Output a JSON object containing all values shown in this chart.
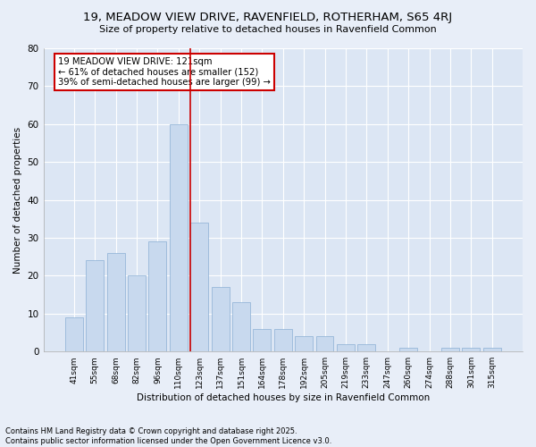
{
  "title": "19, MEADOW VIEW DRIVE, RAVENFIELD, ROTHERHAM, S65 4RJ",
  "subtitle": "Size of property relative to detached houses in Ravenfield Common",
  "xlabel": "Distribution of detached houses by size in Ravenfield Common",
  "ylabel": "Number of detached properties",
  "footnote": "Contains HM Land Registry data © Crown copyright and database right 2025.\nContains public sector information licensed under the Open Government Licence v3.0.",
  "bar_labels": [
    "41sqm",
    "55sqm",
    "68sqm",
    "82sqm",
    "96sqm",
    "110sqm",
    "123sqm",
    "137sqm",
    "151sqm",
    "164sqm",
    "178sqm",
    "192sqm",
    "205sqm",
    "219sqm",
    "233sqm",
    "247sqm",
    "260sqm",
    "274sqm",
    "288sqm",
    "301sqm",
    "315sqm"
  ],
  "bar_values": [
    9,
    24,
    26,
    20,
    29,
    60,
    34,
    17,
    13,
    6,
    6,
    4,
    4,
    2,
    2,
    0,
    1,
    0,
    1,
    1,
    1
  ],
  "bar_color": "#c8d9ee",
  "bar_edge_color": "#8bafd4",
  "annotation_box_text": "19 MEADOW VIEW DRIVE: 121sqm\n← 61% of detached houses are smaller (152)\n39% of semi-detached houses are larger (99) →",
  "ylim": [
    0,
    80
  ],
  "yticks": [
    0,
    10,
    20,
    30,
    40,
    50,
    60,
    70,
    80
  ],
  "bg_color": "#e8eef8",
  "plot_bg_color": "#dce6f4",
  "grid_color": "#ffffff",
  "annotation_box_color": "#ffffff",
  "annotation_box_edge_color": "#cc0000",
  "vline_color": "#cc0000",
  "vline_bar_index": 6
}
